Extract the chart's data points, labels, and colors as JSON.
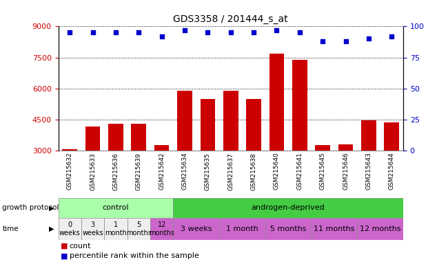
{
  "title": "GDS3358 / 201444_s_at",
  "samples": [
    "GSM215632",
    "GSM215633",
    "GSM215636",
    "GSM215639",
    "GSM215642",
    "GSM215634",
    "GSM215635",
    "GSM215637",
    "GSM215638",
    "GSM215640",
    "GSM215641",
    "GSM215645",
    "GSM215646",
    "GSM215643",
    "GSM215644"
  ],
  "counts": [
    3050,
    4150,
    4300,
    4300,
    3250,
    5900,
    5500,
    5900,
    5500,
    7700,
    7400,
    3250,
    3300,
    4450,
    4350
  ],
  "percentile_ranks": [
    95,
    95,
    95,
    95,
    92,
    97,
    95,
    95,
    95,
    97,
    95,
    88,
    88,
    90,
    92
  ],
  "ylim_left": [
    3000,
    9000
  ],
  "ylim_right": [
    0,
    100
  ],
  "yticks_left": [
    3000,
    4500,
    6000,
    7500,
    9000
  ],
  "yticks_right": [
    0,
    25,
    50,
    75,
    100
  ],
  "bar_color": "#cc0000",
  "dot_color": "#0000cc",
  "axis_color_left": "#cc0000",
  "axis_color_right": "#0000cc",
  "gp_groups": [
    {
      "name": "control",
      "start": 0,
      "end": 5,
      "color": "#aaffaa"
    },
    {
      "name": "androgen-deprived",
      "start": 5,
      "end": 15,
      "color": "#44cc44"
    }
  ],
  "time_groups": [
    {
      "name": "0\nweeks",
      "start": 0,
      "end": 1,
      "color": "#eeeeee"
    },
    {
      "name": "3\nweeks",
      "start": 1,
      "end": 2,
      "color": "#eeeeee"
    },
    {
      "name": "1\nmonth",
      "start": 2,
      "end": 3,
      "color": "#eeeeee"
    },
    {
      "name": "5\nmonths",
      "start": 3,
      "end": 4,
      "color": "#eeeeee"
    },
    {
      "name": "12\nmonths",
      "start": 4,
      "end": 5,
      "color": "#cc66cc"
    },
    {
      "name": "3 weeks",
      "start": 5,
      "end": 7,
      "color": "#cc66cc"
    },
    {
      "name": "1 month",
      "start": 7,
      "end": 9,
      "color": "#cc66cc"
    },
    {
      "name": "5 months",
      "start": 9,
      "end": 11,
      "color": "#cc66cc"
    },
    {
      "name": "11 months",
      "start": 11,
      "end": 13,
      "color": "#cc66cc"
    },
    {
      "name": "12 months",
      "start": 13,
      "end": 15,
      "color": "#cc66cc"
    }
  ],
  "sample_bg_color": "#dddddd",
  "legend_count_color": "#cc0000",
  "legend_pct_color": "#0000cc"
}
